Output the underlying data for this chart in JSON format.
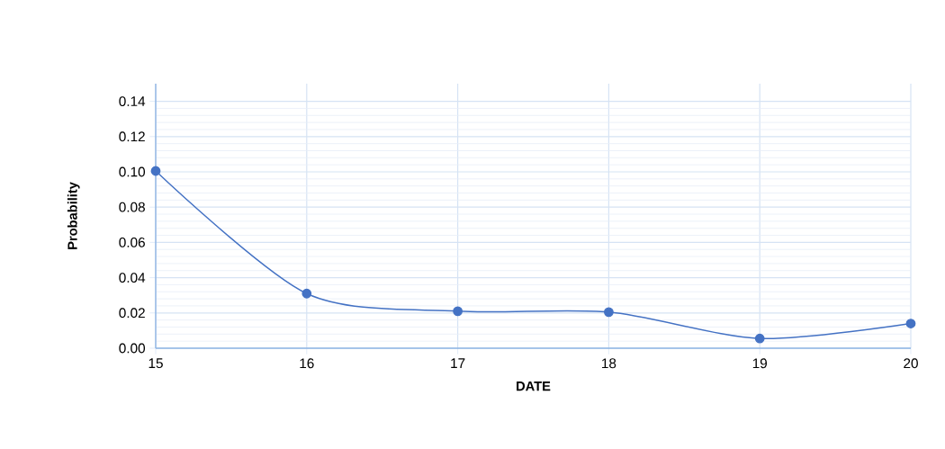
{
  "chart_data": {
    "type": "line",
    "xlabel": "DATE",
    "ylabel": "Probability",
    "x": [
      15,
      16,
      17,
      18,
      19,
      20
    ],
    "series": [
      {
        "color": "#4472c4",
        "values": [
          0.1005,
          0.031,
          0.021,
          0.0205,
          0.0055,
          0.014
        ]
      }
    ],
    "xlim": [
      15,
      20
    ],
    "ylim": [
      0,
      0.15
    ],
    "xticks": [
      15,
      16,
      17,
      18,
      19,
      20
    ],
    "yticks": [
      {
        "value": 0,
        "label": "0.00"
      },
      {
        "value": 0.02,
        "label": "0.02"
      },
      {
        "value": 0.04,
        "label": "0.04"
      },
      {
        "value": 0.06,
        "label": "0.06"
      },
      {
        "value": 0.08,
        "label": "0.08"
      },
      {
        "value": 0.1,
        "label": "0.10"
      },
      {
        "value": 0.12,
        "label": "0.12"
      },
      {
        "value": 0.14,
        "label": "0.14"
      }
    ],
    "grid": true,
    "marker": "circle",
    "line_style": "solid"
  }
}
